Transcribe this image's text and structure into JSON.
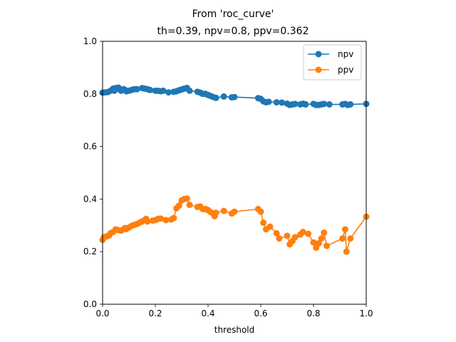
{
  "chart_data": {
    "type": "line",
    "title": "From 'roc_curve'",
    "subtitle": "th=0.39, npv=0.8, ppv=0.362",
    "xlabel": "threshold",
    "ylabel": "",
    "xlim": [
      0,
      1
    ],
    "ylim": [
      0,
      1
    ],
    "xticks": [
      "0.0",
      "0.2",
      "0.4",
      "0.6",
      "0.8",
      "1.0"
    ],
    "yticks": [
      "0.0",
      "0.2",
      "0.4",
      "0.6",
      "0.8",
      "1.0"
    ],
    "grid": false,
    "legend_position": "top-right",
    "series": [
      {
        "name": "npv",
        "color": "#1f77b4",
        "marker": "circle",
        "points": [
          [
            0.0,
            0.805
          ],
          [
            0.01,
            0.806
          ],
          [
            0.02,
            0.807
          ],
          [
            0.03,
            0.812
          ],
          [
            0.04,
            0.82
          ],
          [
            0.045,
            0.812
          ],
          [
            0.05,
            0.822
          ],
          [
            0.06,
            0.824
          ],
          [
            0.065,
            0.818
          ],
          [
            0.07,
            0.812
          ],
          [
            0.08,
            0.818
          ],
          [
            0.085,
            0.815
          ],
          [
            0.09,
            0.81
          ],
          [
            0.1,
            0.812
          ],
          [
            0.11,
            0.815
          ],
          [
            0.12,
            0.818
          ],
          [
            0.13,
            0.818
          ],
          [
            0.15,
            0.822
          ],
          [
            0.16,
            0.82
          ],
          [
            0.17,
            0.818
          ],
          [
            0.18,
            0.815
          ],
          [
            0.2,
            0.812
          ],
          [
            0.21,
            0.812
          ],
          [
            0.22,
            0.81
          ],
          [
            0.23,
            0.812
          ],
          [
            0.25,
            0.806
          ],
          [
            0.27,
            0.808
          ],
          [
            0.28,
            0.81
          ],
          [
            0.29,
            0.814
          ],
          [
            0.3,
            0.817
          ],
          [
            0.31,
            0.82
          ],
          [
            0.32,
            0.823
          ],
          [
            0.33,
            0.812
          ],
          [
            0.36,
            0.808
          ],
          [
            0.37,
            0.805
          ],
          [
            0.38,
            0.8
          ],
          [
            0.39,
            0.8
          ],
          [
            0.4,
            0.796
          ],
          [
            0.41,
            0.792
          ],
          [
            0.42,
            0.788
          ],
          [
            0.43,
            0.785
          ],
          [
            0.46,
            0.79
          ],
          [
            0.49,
            0.787
          ],
          [
            0.5,
            0.788
          ],
          [
            0.59,
            0.784
          ],
          [
            0.6,
            0.781
          ],
          [
            0.61,
            0.772
          ],
          [
            0.62,
            0.768
          ],
          [
            0.63,
            0.77
          ],
          [
            0.66,
            0.768
          ],
          [
            0.68,
            0.767
          ],
          [
            0.7,
            0.763
          ],
          [
            0.71,
            0.758
          ],
          [
            0.72,
            0.76
          ],
          [
            0.73,
            0.762
          ],
          [
            0.75,
            0.76
          ],
          [
            0.76,
            0.763
          ],
          [
            0.77,
            0.76
          ],
          [
            0.8,
            0.762
          ],
          [
            0.81,
            0.758
          ],
          [
            0.82,
            0.758
          ],
          [
            0.83,
            0.76
          ],
          [
            0.84,
            0.762
          ],
          [
            0.86,
            0.76
          ],
          [
            0.91,
            0.76
          ],
          [
            0.92,
            0.762
          ],
          [
            0.93,
            0.758
          ],
          [
            0.94,
            0.76
          ],
          [
            1.0,
            0.762
          ]
        ]
      },
      {
        "name": "ppv",
        "color": "#ff7f0e",
        "marker": "circle",
        "points": [
          [
            0.0,
            0.245
          ],
          [
            0.005,
            0.255
          ],
          [
            0.015,
            0.258
          ],
          [
            0.025,
            0.262
          ],
          [
            0.03,
            0.27
          ],
          [
            0.04,
            0.275
          ],
          [
            0.05,
            0.285
          ],
          [
            0.06,
            0.282
          ],
          [
            0.07,
            0.28
          ],
          [
            0.08,
            0.285
          ],
          [
            0.085,
            0.29
          ],
          [
            0.09,
            0.286
          ],
          [
            0.1,
            0.292
          ],
          [
            0.11,
            0.298
          ],
          [
            0.12,
            0.302
          ],
          [
            0.13,
            0.305
          ],
          [
            0.14,
            0.31
          ],
          [
            0.15,
            0.315
          ],
          [
            0.16,
            0.32
          ],
          [
            0.165,
            0.325
          ],
          [
            0.17,
            0.315
          ],
          [
            0.19,
            0.318
          ],
          [
            0.2,
            0.32
          ],
          [
            0.21,
            0.325
          ],
          [
            0.22,
            0.326
          ],
          [
            0.24,
            0.32
          ],
          [
            0.26,
            0.322
          ],
          [
            0.27,
            0.328
          ],
          [
            0.28,
            0.365
          ],
          [
            0.29,
            0.375
          ],
          [
            0.3,
            0.395
          ],
          [
            0.31,
            0.4
          ],
          [
            0.32,
            0.402
          ],
          [
            0.33,
            0.378
          ],
          [
            0.36,
            0.37
          ],
          [
            0.37,
            0.372
          ],
          [
            0.38,
            0.362
          ],
          [
            0.39,
            0.362
          ],
          [
            0.4,
            0.358
          ],
          [
            0.41,
            0.35
          ],
          [
            0.42,
            0.345
          ],
          [
            0.425,
            0.335
          ],
          [
            0.43,
            0.348
          ],
          [
            0.46,
            0.355
          ],
          [
            0.49,
            0.345
          ],
          [
            0.5,
            0.352
          ],
          [
            0.59,
            0.362
          ],
          [
            0.6,
            0.352
          ],
          [
            0.61,
            0.31
          ],
          [
            0.62,
            0.285
          ],
          [
            0.635,
            0.295
          ],
          [
            0.66,
            0.27
          ],
          [
            0.67,
            0.25
          ],
          [
            0.7,
            0.26
          ],
          [
            0.71,
            0.228
          ],
          [
            0.72,
            0.24
          ],
          [
            0.73,
            0.255
          ],
          [
            0.75,
            0.265
          ],
          [
            0.76,
            0.275
          ],
          [
            0.78,
            0.268
          ],
          [
            0.8,
            0.235
          ],
          [
            0.81,
            0.215
          ],
          [
            0.82,
            0.232
          ],
          [
            0.83,
            0.25
          ],
          [
            0.84,
            0.272
          ],
          [
            0.85,
            0.222
          ],
          [
            0.91,
            0.25
          ],
          [
            0.92,
            0.285
          ],
          [
            0.925,
            0.2
          ],
          [
            0.94,
            0.25
          ],
          [
            1.0,
            0.333
          ]
        ]
      }
    ]
  }
}
